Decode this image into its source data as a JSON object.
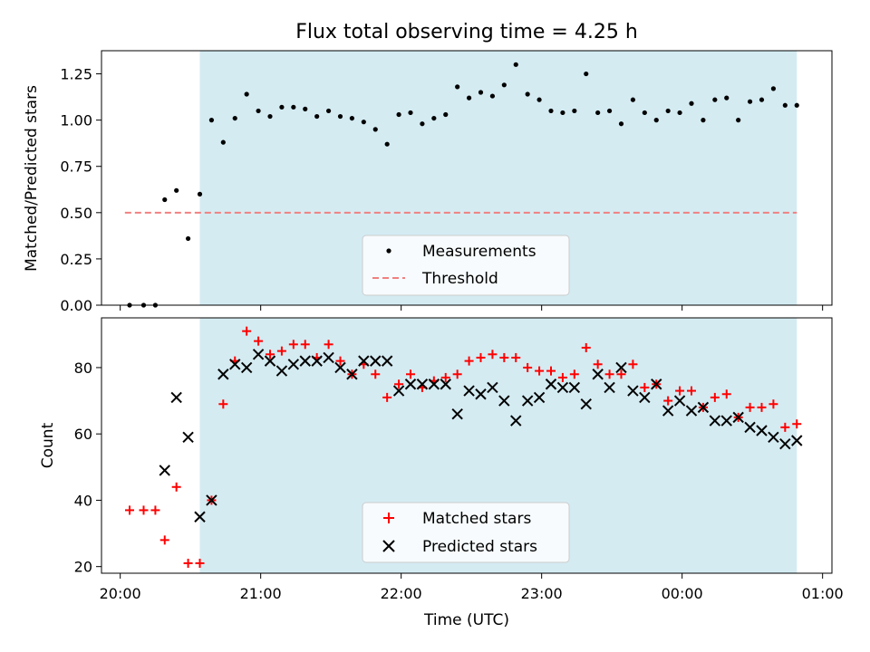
{
  "chart_data": [
    {
      "type": "scatter",
      "title": "Flux total observing time = 4.25 h",
      "xlabel": "",
      "ylabel": "Matched/Predicted stars",
      "xlim": [
        "19:52",
        "01:04"
      ],
      "ylim": [
        0,
        1.375
      ],
      "yticks": [
        "0.00",
        "0.25",
        "0.50",
        "0.75",
        "1.00",
        "1.25"
      ],
      "shaded_interval": [
        "20:34",
        "00:49"
      ],
      "shade_color": "#d4ebf2",
      "legend_position": "lower-center",
      "series": [
        {
          "name": "Measurements",
          "marker": "dot",
          "color": "#000000",
          "points": [
            [
              "20:04",
              0.0
            ],
            [
              "20:10",
              0.0
            ],
            [
              "20:15",
              0.0
            ],
            [
              "20:19",
              0.57
            ],
            [
              "20:24",
              0.62
            ],
            [
              "20:29",
              0.36
            ],
            [
              "20:34",
              0.6
            ],
            [
              "20:39",
              1.0
            ],
            [
              "20:44",
              0.88
            ],
            [
              "20:49",
              1.01
            ],
            [
              "20:54",
              1.14
            ],
            [
              "20:59",
              1.05
            ],
            [
              "21:04",
              1.02
            ],
            [
              "21:09",
              1.07
            ],
            [
              "21:14",
              1.07
            ],
            [
              "21:19",
              1.06
            ],
            [
              "21:24",
              1.02
            ],
            [
              "21:29",
              1.05
            ],
            [
              "21:34",
              1.02
            ],
            [
              "21:39",
              1.01
            ],
            [
              "21:44",
              0.99
            ],
            [
              "21:49",
              0.95
            ],
            [
              "21:54",
              0.87
            ],
            [
              "21:59",
              1.03
            ],
            [
              "22:04",
              1.04
            ],
            [
              "22:09",
              0.98
            ],
            [
              "22:14",
              1.01
            ],
            [
              "22:19",
              1.03
            ],
            [
              "22:24",
              1.18
            ],
            [
              "22:29",
              1.12
            ],
            [
              "22:34",
              1.15
            ],
            [
              "22:39",
              1.13
            ],
            [
              "22:44",
              1.19
            ],
            [
              "22:49",
              1.3
            ],
            [
              "22:54",
              1.14
            ],
            [
              "22:59",
              1.11
            ],
            [
              "23:04",
              1.05
            ],
            [
              "23:09",
              1.04
            ],
            [
              "23:14",
              1.05
            ],
            [
              "23:19",
              1.25
            ],
            [
              "23:24",
              1.04
            ],
            [
              "23:29",
              1.05
            ],
            [
              "23:34",
              0.98
            ],
            [
              "23:39",
              1.11
            ],
            [
              "23:44",
              1.04
            ],
            [
              "23:49",
              1.0
            ],
            [
              "23:54",
              1.05
            ],
            [
              "23:59",
              1.04
            ],
            [
              "00:04",
              1.09
            ],
            [
              "00:09",
              1.0
            ],
            [
              "00:14",
              1.11
            ],
            [
              "00:19",
              1.12
            ],
            [
              "00:24",
              1.0
            ],
            [
              "00:29",
              1.1
            ],
            [
              "00:34",
              1.11
            ],
            [
              "00:39",
              1.17
            ],
            [
              "00:44",
              1.08
            ],
            [
              "00:49",
              1.08
            ]
          ]
        },
        {
          "name": "Threshold",
          "marker": "dashed-line",
          "color": "#f08080",
          "points": [
            [
              "20:02",
              0.5
            ],
            [
              "00:49",
              0.5
            ]
          ]
        }
      ]
    },
    {
      "type": "scatter",
      "title": "",
      "xlabel": "Time (UTC)",
      "ylabel": "Count",
      "xlim": [
        "19:52",
        "01:04"
      ],
      "ylim": [
        18,
        95
      ],
      "yticks": [
        "20",
        "40",
        "60",
        "80"
      ],
      "xticks": [
        "20:00",
        "21:00",
        "22:00",
        "23:00",
        "00:00",
        "01:00"
      ],
      "shaded_interval": [
        "20:34",
        "00:49"
      ],
      "shade_color": "#d4ebf2",
      "legend_position": "lower-center",
      "series": [
        {
          "name": "Matched stars",
          "marker": "plus",
          "color": "#ff0000",
          "points": [
            [
              "20:04",
              37
            ],
            [
              "20:10",
              37
            ],
            [
              "20:15",
              37
            ],
            [
              "20:19",
              28
            ],
            [
              "20:24",
              44
            ],
            [
              "20:29",
              21
            ],
            [
              "20:34",
              21
            ],
            [
              "20:39",
              40
            ],
            [
              "20:44",
              69
            ],
            [
              "20:49",
              82
            ],
            [
              "20:54",
              91
            ],
            [
              "20:59",
              88
            ],
            [
              "21:04",
              84
            ],
            [
              "21:09",
              85
            ],
            [
              "21:14",
              87
            ],
            [
              "21:19",
              87
            ],
            [
              "21:24",
              83
            ],
            [
              "21:29",
              87
            ],
            [
              "21:34",
              82
            ],
            [
              "21:39",
              78
            ],
            [
              "21:44",
              81
            ],
            [
              "21:49",
              78
            ],
            [
              "21:54",
              71
            ],
            [
              "21:59",
              75
            ],
            [
              "22:04",
              78
            ],
            [
              "22:09",
              74
            ],
            [
              "22:14",
              76
            ],
            [
              "22:19",
              77
            ],
            [
              "22:24",
              78
            ],
            [
              "22:29",
              82
            ],
            [
              "22:34",
              83
            ],
            [
              "22:39",
              84
            ],
            [
              "22:44",
              83
            ],
            [
              "22:49",
              83
            ],
            [
              "22:54",
              80
            ],
            [
              "22:59",
              79
            ],
            [
              "23:04",
              79
            ],
            [
              "23:09",
              77
            ],
            [
              "23:14",
              78
            ],
            [
              "23:19",
              86
            ],
            [
              "23:24",
              81
            ],
            [
              "23:29",
              78
            ],
            [
              "23:34",
              78
            ],
            [
              "23:39",
              81
            ],
            [
              "23:44",
              74
            ],
            [
              "23:49",
              75
            ],
            [
              "23:54",
              70
            ],
            [
              "23:59",
              73
            ],
            [
              "00:04",
              73
            ],
            [
              "00:09",
              68
            ],
            [
              "00:14",
              71
            ],
            [
              "00:19",
              72
            ],
            [
              "00:24",
              65
            ],
            [
              "00:29",
              68
            ],
            [
              "00:34",
              68
            ],
            [
              "00:39",
              69
            ],
            [
              "00:44",
              62
            ],
            [
              "00:49",
              63
            ]
          ]
        },
        {
          "name": "Predicted stars",
          "marker": "x",
          "color": "#000000",
          "points": [
            [
              "20:19",
              49
            ],
            [
              "20:24",
              71
            ],
            [
              "20:29",
              59
            ],
            [
              "20:34",
              35
            ],
            [
              "20:39",
              40
            ],
            [
              "20:44",
              78
            ],
            [
              "20:49",
              81
            ],
            [
              "20:54",
              80
            ],
            [
              "20:59",
              84
            ],
            [
              "21:04",
              82
            ],
            [
              "21:09",
              79
            ],
            [
              "21:14",
              81
            ],
            [
              "21:19",
              82
            ],
            [
              "21:24",
              82
            ],
            [
              "21:29",
              83
            ],
            [
              "21:34",
              80
            ],
            [
              "21:39",
              78
            ],
            [
              "21:44",
              82
            ],
            [
              "21:49",
              82
            ],
            [
              "21:54",
              82
            ],
            [
              "21:59",
              73
            ],
            [
              "22:04",
              75
            ],
            [
              "22:09",
              75
            ],
            [
              "22:14",
              75
            ],
            [
              "22:19",
              75
            ],
            [
              "22:24",
              66
            ],
            [
              "22:29",
              73
            ],
            [
              "22:34",
              72
            ],
            [
              "22:39",
              74
            ],
            [
              "22:44",
              70
            ],
            [
              "22:49",
              64
            ],
            [
              "22:54",
              70
            ],
            [
              "22:59",
              71
            ],
            [
              "23:04",
              75
            ],
            [
              "23:09",
              74
            ],
            [
              "23:14",
              74
            ],
            [
              "23:19",
              69
            ],
            [
              "23:24",
              78
            ],
            [
              "23:29",
              74
            ],
            [
              "23:34",
              80
            ],
            [
              "23:39",
              73
            ],
            [
              "23:44",
              71
            ],
            [
              "23:49",
              75
            ],
            [
              "23:54",
              67
            ],
            [
              "23:59",
              70
            ],
            [
              "00:04",
              67
            ],
            [
              "00:09",
              68
            ],
            [
              "00:14",
              64
            ],
            [
              "00:19",
              64
            ],
            [
              "00:24",
              65
            ],
            [
              "00:29",
              62
            ],
            [
              "00:34",
              61
            ],
            [
              "00:39",
              59
            ],
            [
              "00:44",
              57
            ],
            [
              "00:49",
              58
            ]
          ]
        }
      ]
    }
  ]
}
